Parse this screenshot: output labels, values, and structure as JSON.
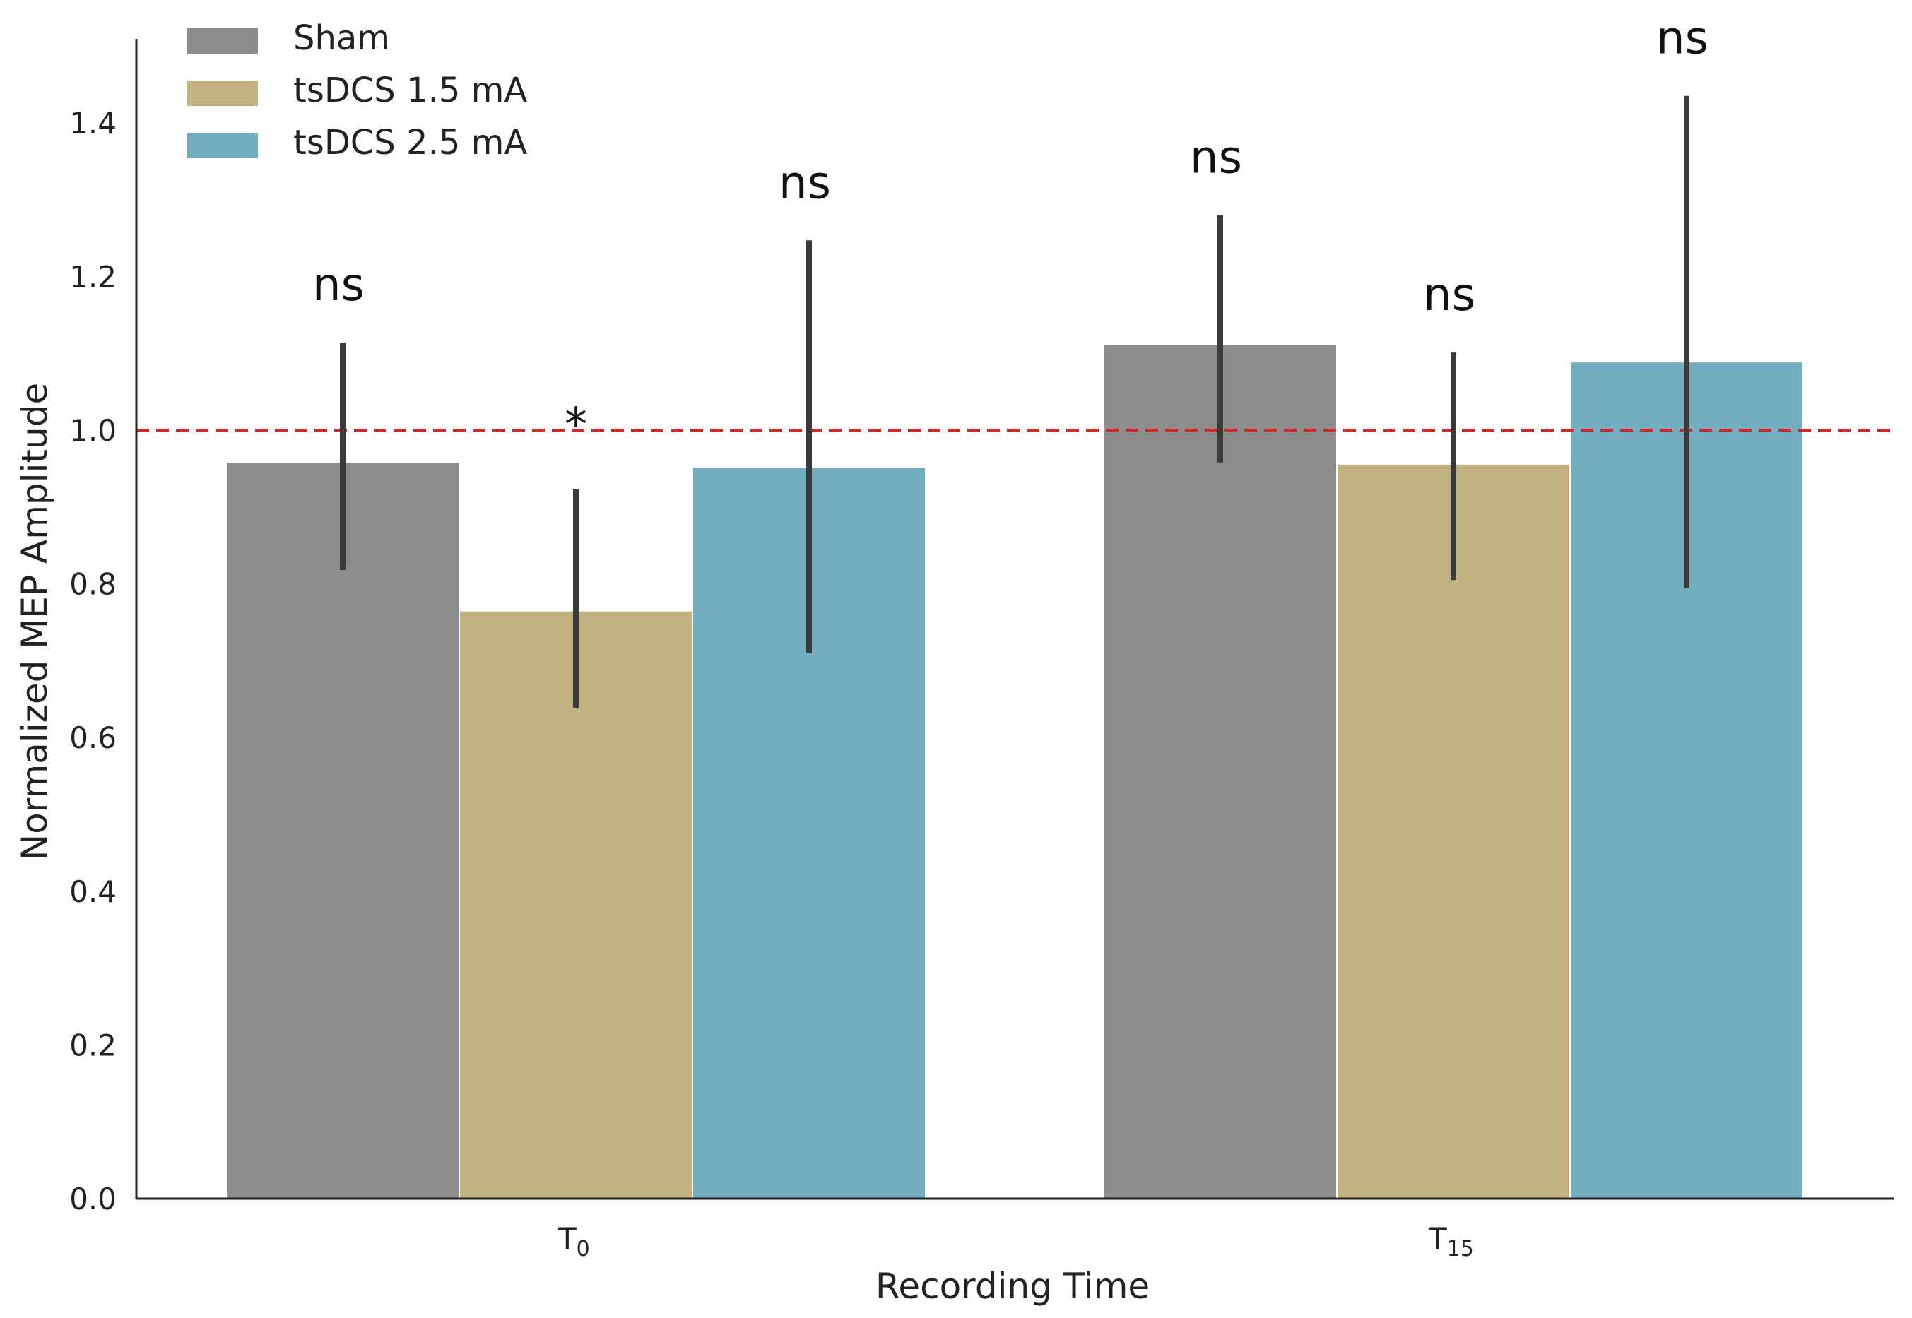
{
  "chart_data": {
    "type": "bar",
    "title": "",
    "xlabel": "Recording Time",
    "ylabel": "Normalized MEP Amplitude",
    "ylim": [
      0,
      1.51
    ],
    "yticks": [
      "0.0",
      "0.2",
      "0.4",
      "0.6",
      "0.8",
      "1.0",
      "1.2",
      "1.4"
    ],
    "grid": false,
    "legend_position": "top-left",
    "categories": [
      {
        "main": "T",
        "sub": "0"
      },
      {
        "main": "T",
        "sub": "15"
      }
    ],
    "reference_line": {
      "y": 1.0,
      "color": "#d62728",
      "style": "dashed"
    },
    "series": [
      {
        "name": "Sham",
        "color": "#8c8c8c",
        "values": [
          0.958,
          1.112
        ],
        "err_low": [
          0.818,
          0.958
        ],
        "err_high": [
          1.114,
          1.28
        ],
        "annotations": [
          "ns",
          "ns"
        ]
      },
      {
        "name": "tsDCS 1.5 mA",
        "color": "#c1b280",
        "values": [
          0.765,
          0.956
        ],
        "err_low": [
          0.638,
          0.805
        ],
        "err_high": [
          0.923,
          1.101
        ],
        "annotations": [
          "*",
          "ns"
        ]
      },
      {
        "name": "tsDCS 2.5 mA",
        "color": "#73adc0",
        "values": [
          0.952,
          1.089
        ],
        "err_low": [
          0.71,
          0.795
        ],
        "err_high": [
          1.247,
          1.435
        ],
        "annotations": [
          "ns",
          "ns"
        ]
      }
    ]
  }
}
